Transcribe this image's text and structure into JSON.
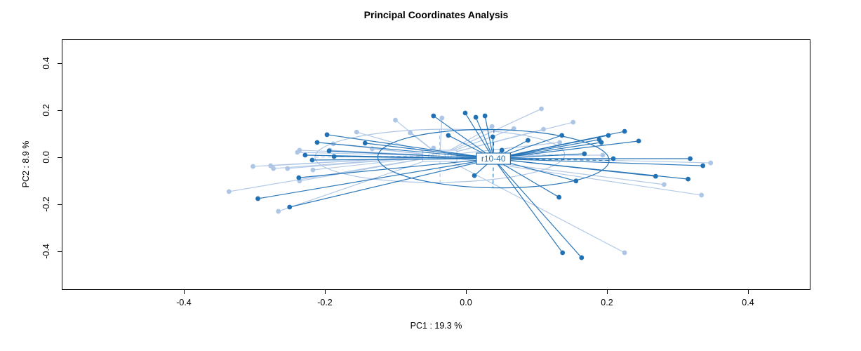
{
  "title": "Principal Coordinates Analysis",
  "colors": {
    "background": "#ffffff",
    "axis": "#000000",
    "group_light": "#aec6e6",
    "group_dark": "#2171b5"
  },
  "chart_data": {
    "type": "scatter",
    "title": "Principal Coordinates Analysis",
    "xlabel": "PC1 :  19.3 %",
    "ylabel": "PC2 :  8.9 %",
    "xlim": [
      -0.57,
      0.49
    ],
    "ylim": [
      -0.56,
      0.5
    ],
    "x_ticks": [
      -0.4,
      -0.2,
      0.0,
      0.2,
      0.4
    ],
    "y_ticks": [
      -0.4,
      -0.2,
      0.0,
      0.2,
      0.4
    ],
    "grid": false,
    "legend": "none",
    "groups": [
      {
        "name": "r40-10",
        "color": "#aec6e6",
        "centroid": [
          -0.037,
          0.006
        ],
        "ellipse": {
          "rx": 0.177,
          "ry": 0.113,
          "tilt_deg": -0.6
        },
        "points": [
          [
            -0.155,
            0.107
          ],
          [
            -0.133,
            0.036
          ],
          [
            -0.236,
            0.03
          ],
          [
            -0.239,
            0.021
          ],
          [
            -0.188,
            0.057
          ],
          [
            -0.193,
            0.03
          ],
          [
            -0.302,
            -0.039
          ],
          [
            -0.277,
            -0.036
          ],
          [
            -0.273,
            -0.048
          ],
          [
            -0.253,
            -0.048
          ],
          [
            -0.217,
            -0.054
          ],
          [
            -0.236,
            -0.101
          ],
          [
            -0.336,
            -0.146
          ],
          [
            -0.266,
            -0.23
          ],
          [
            -0.1,
            0.158
          ],
          [
            -0.079,
            0.104
          ],
          [
            -0.034,
            0.167
          ],
          [
            -0.046,
            0.039
          ],
          [
            0.037,
            0.131
          ],
          [
            0.068,
            0.122
          ],
          [
            0.107,
            0.206
          ],
          [
            0.11,
            0.119
          ],
          [
            0.152,
            0.149
          ],
          [
            0.133,
            0.063
          ],
          [
            0.194,
            0.009
          ],
          [
            0.281,
            -0.116
          ],
          [
            0.347,
            -0.024
          ],
          [
            0.334,
            -0.161
          ],
          [
            0.225,
            -0.406
          ]
        ]
      },
      {
        "name": "r10-40",
        "color": "#2171b5",
        "centroid": [
          0.039,
          -0.006
        ],
        "ellipse": {
          "rx": 0.164,
          "ry": 0.124,
          "tilt_deg": 0.9
        },
        "points": [
          [
            -0.211,
            0.063
          ],
          [
            -0.197,
            0.096
          ],
          [
            -0.194,
            0.027
          ],
          [
            -0.228,
            0.009
          ],
          [
            -0.218,
            -0.012
          ],
          [
            -0.187,
            0.003
          ],
          [
            -0.143,
            0.06
          ],
          [
            -0.237,
            -0.087
          ],
          [
            -0.295,
            -0.176
          ],
          [
            -0.25,
            -0.212
          ],
          [
            -0.046,
            0.176
          ],
          [
            -0.001,
            0.188
          ],
          [
            0.014,
            0.17
          ],
          [
            0.027,
            0.176
          ],
          [
            -0.025,
            0.093
          ],
          [
            0.038,
            0.087
          ],
          [
            0.051,
            0.03
          ],
          [
            0.088,
            0.072
          ],
          [
            0.012,
            -0.078
          ],
          [
            0.136,
            0.093
          ],
          [
            0.189,
            0.075
          ],
          [
            0.202,
            0.093
          ],
          [
            0.225,
            0.11
          ],
          [
            0.245,
            0.069
          ],
          [
            0.192,
            0.063
          ],
          [
            0.168,
            0.015
          ],
          [
            0.209,
            -0.006
          ],
          [
            0.318,
            -0.006
          ],
          [
            0.336,
            -0.036
          ],
          [
            0.269,
            -0.081
          ],
          [
            0.315,
            -0.093
          ],
          [
            0.156,
            -0.101
          ],
          [
            0.132,
            -0.17
          ],
          [
            0.137,
            -0.406
          ],
          [
            0.164,
            -0.427
          ]
        ]
      }
    ]
  }
}
